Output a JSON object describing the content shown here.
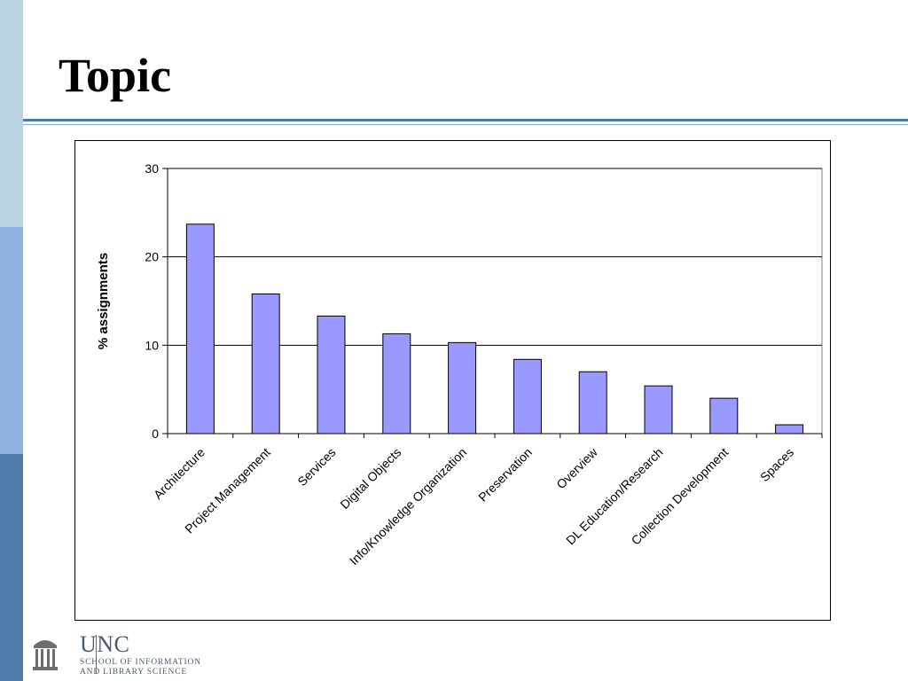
{
  "slide": {
    "title": "Topic"
  },
  "logo": {
    "name": "UNC",
    "line1": "SCHOOL OF INFORMATION",
    "line2": "AND LIBRARY SCIENCE"
  },
  "colors": {
    "bar_fill": "#9999ff",
    "strip_top": "#b9d3e2",
    "strip_middle": "#8fb1de",
    "strip_bottom": "#4f7ba8",
    "rule": "#4f7ba8"
  },
  "chart_data": {
    "type": "bar",
    "title": "",
    "xlabel": "",
    "ylabel": "% assignments",
    "ylim": [
      0,
      30
    ],
    "yticks": [
      0,
      10,
      20,
      30
    ],
    "grid": true,
    "legend": "none",
    "categories": [
      "Architecture",
      "Project Management",
      "Services",
      "Digital Objects",
      "Info/Knowledge Organization",
      "Preservation",
      "Overview",
      "DL Education/Research",
      "Collection Development",
      "Spaces"
    ],
    "values": [
      23.7,
      15.8,
      13.3,
      11.3,
      10.3,
      8.4,
      7.0,
      5.4,
      4.0,
      1.0
    ]
  }
}
